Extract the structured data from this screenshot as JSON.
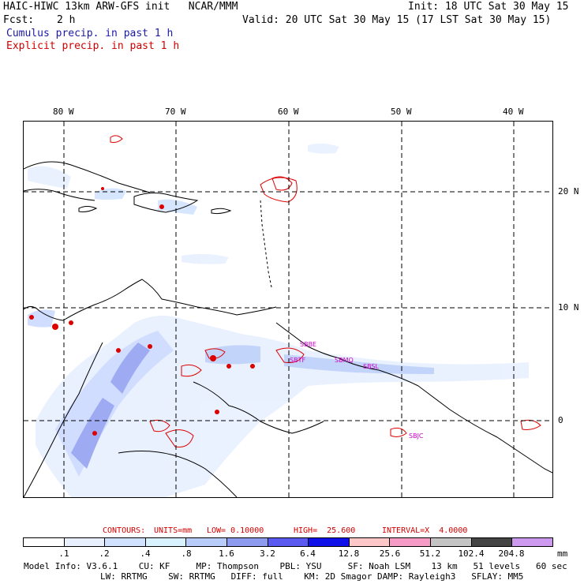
{
  "header": {
    "title_left": "HAIC-HIWC 13km ARW-GFS init   NCAR/MMM",
    "init": "Init: 18 UTC Sat 30 May 15",
    "fcst_label": "Fcst:",
    "fcst_value": "2 h",
    "valid": "Valid: 20 UTC Sat 30 May 15 (17 LST Sat 30 May 15)",
    "cumulus": "Cumulus precip. in past 1 h",
    "explicit": "Explicit precip. in past 1 h"
  },
  "map": {
    "lon_labels": [
      "80 W",
      "70 W",
      "60 W",
      "50 W",
      "40 W"
    ],
    "lat_labels": [
      "20 N",
      "10 N",
      "0"
    ],
    "station_labels": [
      "SBBE",
      "SBMQ",
      "SBSL",
      "SBJC",
      "SBTF"
    ]
  },
  "contours": {
    "label": "CONTOURS:",
    "units": "UNITS=mm",
    "low": "LOW= 0.10000",
    "high": "HIGH=  25.600",
    "interval": "INTERVAL=X  4.0000"
  },
  "colorbar": {
    "ticks": [
      ".1",
      ".2",
      ".4",
      ".8",
      "1.6",
      "3.2",
      "6.4",
      "12.8",
      "25.6",
      "51.2",
      "102.4",
      "204.8"
    ],
    "unit": "mm",
    "colors": [
      "#ffffff",
      "#e8f0ff",
      "#d0e2ff",
      "#d9f2ff",
      "#b9cdfa",
      "#8e9cf0",
      "#5a5af0",
      "#1010e8",
      "#ffc8c8",
      "#f59bc5",
      "#c4c4c4",
      "#444444",
      "#cc99ee"
    ]
  },
  "footer": {
    "line1": "Model Info: V3.6.1    CU: KF     MP: Thompson    PBL: YSU     SF: Noah LSM    13 km   51 levels   60 sec",
    "line2": "LW: RRTMG    SW: RRTMG   DIFF: full    KM: 2D Smagor DAMP: Rayleigh3   SFLAY: MM5"
  }
}
